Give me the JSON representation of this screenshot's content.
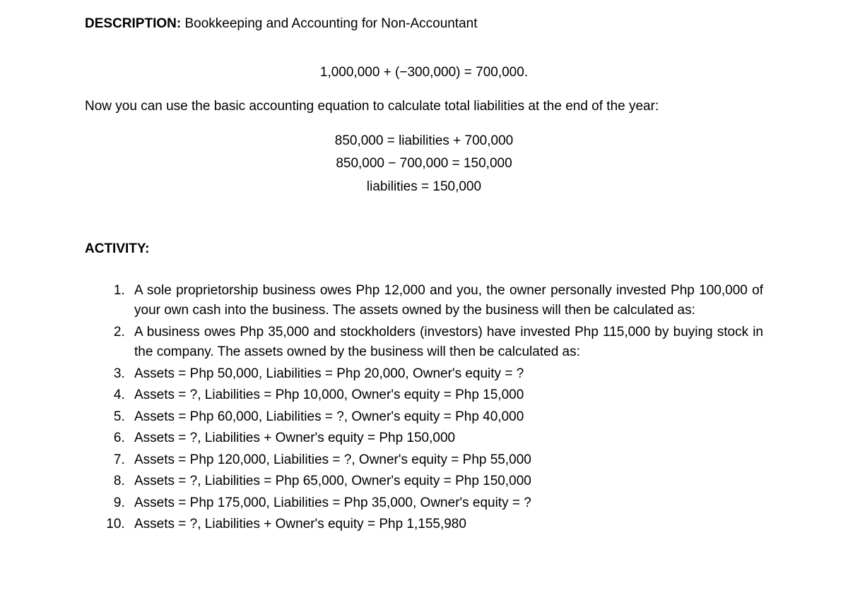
{
  "description": {
    "label": "DESCRIPTION:",
    "text": "Bookkeeping and Accounting for Non-Accountant"
  },
  "equation1": "1,000,000 + (−300,000) = 700,000.",
  "paragraph1": "Now you can use the basic accounting equation to calculate total liabilities at the end of the year:",
  "equations": {
    "line1": "850,000 = liabilities + 700,000",
    "line2": "850,000 − 700,000 = 150,000",
    "line3": "liabilities = 150,000"
  },
  "activity": {
    "heading": "ACTIVITY:",
    "items": [
      "A sole proprietorship business owes Php 12,000 and you, the owner personally invested Php 100,000 of your own cash into the business. The assets owned by the business will then be calculated as:",
      "A business owes Php 35,000 and stockholders (investors) have invested Php 115,000 by buying stock in the company. The assets owned by the business will then be calculated as:",
      "Assets = Php 50,000, Liabilities = Php 20,000, Owner's equity = ?",
      "Assets = ?, Liabilities = Php 10,000, Owner's equity = Php 15,000",
      "Assets = Php 60,000, Liabilities = ?, Owner's equity = Php 40,000",
      "Assets = ?, Liabilities + Owner's equity = Php 150,000",
      "Assets = Php 120,000, Liabilities = ?, Owner's equity = Php 55,000",
      "Assets = ?, Liabilities = Php 65,000, Owner's equity = Php 150,000",
      "Assets = Php 175,000, Liabilities = Php 35,000, Owner's equity = ?",
      "Assets = ?, Liabilities + Owner's equity = Php 1,155,980"
    ]
  }
}
